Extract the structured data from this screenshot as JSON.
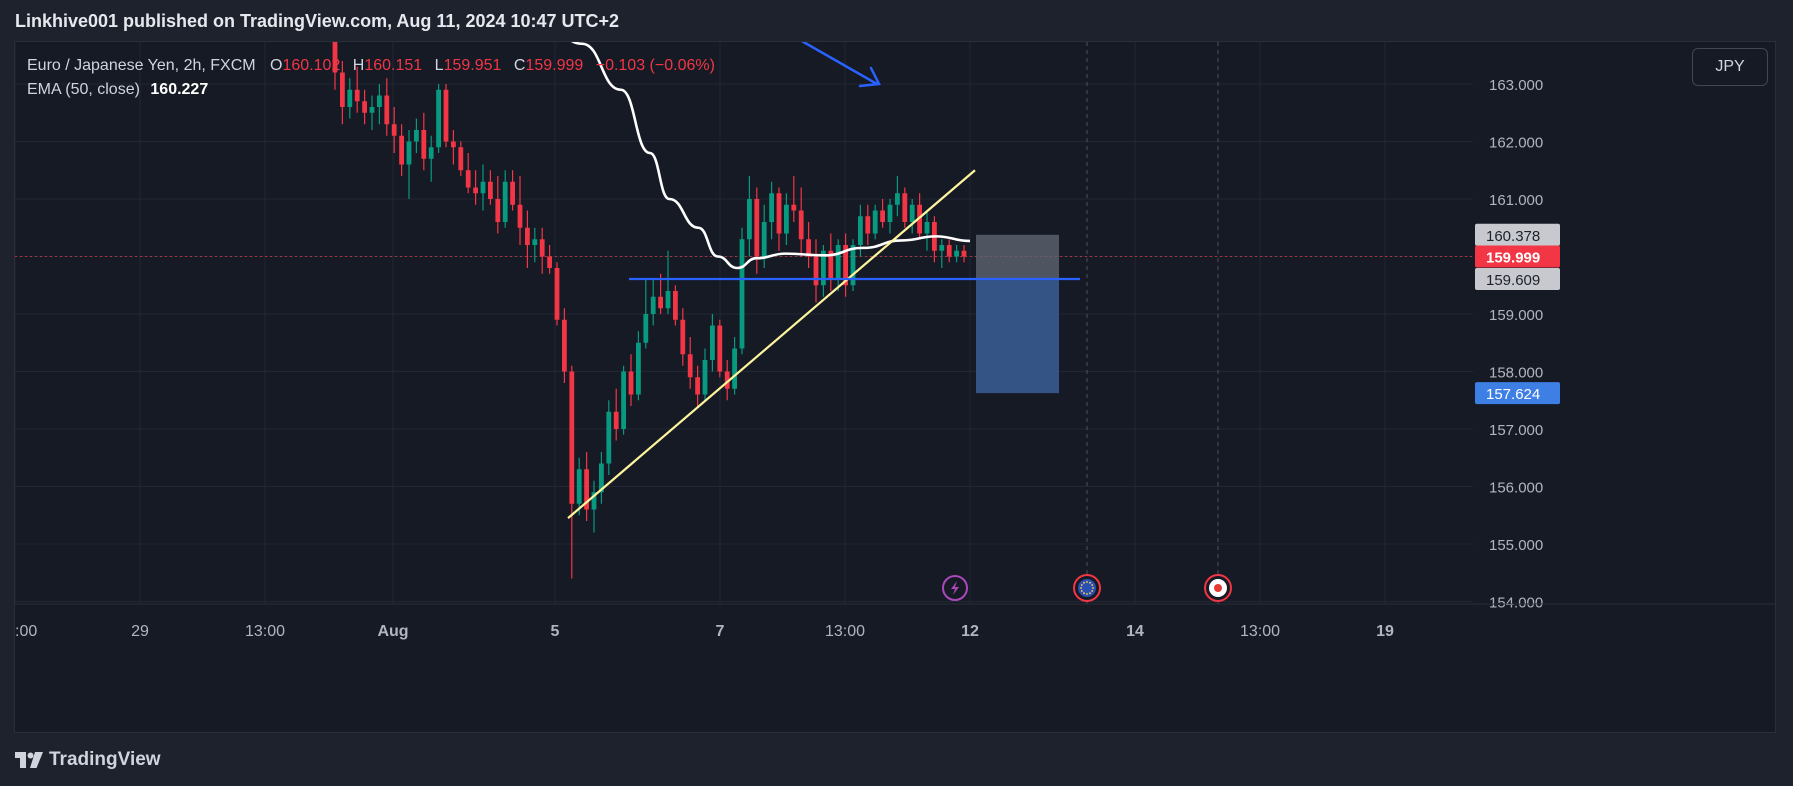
{
  "header": {
    "publish_line": "Linkhive001 published on TradingView.com, Aug 11, 2024 10:47 UTC+2"
  },
  "legend": {
    "symbol": "Euro / Japanese Yen, 2h, FXCM",
    "open_label": "O",
    "open_value": "160.102",
    "high_label": "H",
    "high_value": "160.151",
    "low_label": "L",
    "low_value": "159.951",
    "close_label": "C",
    "close_value": "159.999",
    "change": "−0.103 (−0.06%)",
    "ema_label": "EMA (50, close)",
    "ema_value": "160.227"
  },
  "currency_button": "JPY",
  "footer": {
    "brand": "TradingView"
  },
  "colors": {
    "background": "#161a25",
    "up_candle": "#089981",
    "down_candle": "#f23645",
    "ema_line": "#ffffff",
    "trendline": "#fff59d",
    "support_line": "#2962ff",
    "arrow": "#2962ff",
    "target_zone": "#3a5f96",
    "stop_zone": "#5d6470"
  },
  "chart_data": {
    "type": "candlestick",
    "symbol": "EURJPY",
    "interval": "2h",
    "y_axis": {
      "ticks": [
        "163.000",
        "162.000",
        "161.000",
        "159.000",
        "158.000",
        "157.000",
        "156.000",
        "155.000",
        "154.000"
      ],
      "ylim": [
        153.9,
        164.4
      ]
    },
    "x_axis": {
      "tick_labels": [
        ":00",
        "29",
        "13:00",
        "Aug",
        "5",
        "7",
        "13:00",
        "12",
        "14",
        "13:00",
        "19"
      ],
      "bold_ticks": [
        "Aug",
        "5",
        "7",
        "12",
        "14",
        "19"
      ]
    },
    "price_labels": [
      {
        "name": "stop",
        "value": "160.378"
      },
      {
        "name": "last",
        "value": "159.999"
      },
      {
        "name": "entry",
        "value": "159.609"
      },
      {
        "name": "target",
        "value": "157.624"
      }
    ],
    "last_price": 159.999,
    "support_level": 159.609,
    "candles": [
      {
        "o": 163.8,
        "h": 164.2,
        "l": 162.9,
        "c": 163.2
      },
      {
        "o": 163.2,
        "h": 163.4,
        "l": 162.3,
        "c": 162.6
      },
      {
        "o": 162.6,
        "h": 163.1,
        "l": 162.4,
        "c": 162.9
      },
      {
        "o": 162.9,
        "h": 163.3,
        "l": 162.5,
        "c": 162.7
      },
      {
        "o": 162.7,
        "h": 162.9,
        "l": 162.3,
        "c": 162.5
      },
      {
        "o": 162.5,
        "h": 162.8,
        "l": 162.2,
        "c": 162.6
      },
      {
        "o": 162.6,
        "h": 163.0,
        "l": 162.3,
        "c": 162.8
      },
      {
        "o": 162.8,
        "h": 163.1,
        "l": 162.1,
        "c": 162.3
      },
      {
        "o": 162.3,
        "h": 162.6,
        "l": 161.8,
        "c": 162.1
      },
      {
        "o": 162.1,
        "h": 162.3,
        "l": 161.4,
        "c": 161.6
      },
      {
        "o": 161.6,
        "h": 162.2,
        "l": 161.0,
        "c": 162.0
      },
      {
        "o": 162.0,
        "h": 162.4,
        "l": 161.8,
        "c": 162.2
      },
      {
        "o": 162.2,
        "h": 162.5,
        "l": 161.5,
        "c": 161.7
      },
      {
        "o": 161.7,
        "h": 162.1,
        "l": 161.3,
        "c": 161.9
      },
      {
        "o": 161.9,
        "h": 163.0,
        "l": 161.8,
        "c": 162.9
      },
      {
        "o": 162.9,
        "h": 163.0,
        "l": 161.9,
        "c": 162.0
      },
      {
        "o": 162.0,
        "h": 162.2,
        "l": 161.6,
        "c": 161.9
      },
      {
        "o": 161.9,
        "h": 162.0,
        "l": 161.4,
        "c": 161.5
      },
      {
        "o": 161.5,
        "h": 161.8,
        "l": 161.1,
        "c": 161.2
      },
      {
        "o": 161.2,
        "h": 161.5,
        "l": 160.9,
        "c": 161.1
      },
      {
        "o": 161.1,
        "h": 161.6,
        "l": 160.8,
        "c": 161.3
      },
      {
        "o": 161.3,
        "h": 161.5,
        "l": 160.9,
        "c": 161.0
      },
      {
        "o": 161.0,
        "h": 161.4,
        "l": 160.4,
        "c": 160.6
      },
      {
        "o": 160.6,
        "h": 161.5,
        "l": 160.5,
        "c": 161.3
      },
      {
        "o": 161.3,
        "h": 161.5,
        "l": 160.8,
        "c": 160.9
      },
      {
        "o": 160.9,
        "h": 161.4,
        "l": 160.2,
        "c": 160.5
      },
      {
        "o": 160.5,
        "h": 160.8,
        "l": 159.8,
        "c": 160.2
      },
      {
        "o": 160.2,
        "h": 160.5,
        "l": 159.9,
        "c": 160.3
      },
      {
        "o": 160.3,
        "h": 160.5,
        "l": 159.7,
        "c": 160.0
      },
      {
        "o": 160.0,
        "h": 160.2,
        "l": 159.7,
        "c": 159.8
      },
      {
        "o": 159.8,
        "h": 159.9,
        "l": 158.8,
        "c": 158.9
      },
      {
        "o": 158.9,
        "h": 159.1,
        "l": 157.8,
        "c": 158.0
      },
      {
        "o": 158.0,
        "h": 158.1,
        "l": 154.4,
        "c": 155.7
      },
      {
        "o": 155.7,
        "h": 156.5,
        "l": 155.5,
        "c": 156.3
      },
      {
        "o": 156.3,
        "h": 156.6,
        "l": 155.4,
        "c": 155.6
      },
      {
        "o": 155.6,
        "h": 156.1,
        "l": 155.2,
        "c": 155.9
      },
      {
        "o": 155.9,
        "h": 156.6,
        "l": 155.7,
        "c": 156.4
      },
      {
        "o": 156.4,
        "h": 157.5,
        "l": 156.2,
        "c": 157.3
      },
      {
        "o": 157.3,
        "h": 157.7,
        "l": 156.8,
        "c": 157.0
      },
      {
        "o": 157.0,
        "h": 158.1,
        "l": 156.9,
        "c": 158.0
      },
      {
        "o": 158.0,
        "h": 158.3,
        "l": 157.4,
        "c": 157.6
      },
      {
        "o": 157.6,
        "h": 158.7,
        "l": 157.5,
        "c": 158.5
      },
      {
        "o": 158.5,
        "h": 159.6,
        "l": 158.4,
        "c": 159.0
      },
      {
        "o": 159.0,
        "h": 159.6,
        "l": 158.8,
        "c": 159.3
      },
      {
        "o": 159.3,
        "h": 159.7,
        "l": 159.0,
        "c": 159.1
      },
      {
        "o": 159.1,
        "h": 160.1,
        "l": 159.0,
        "c": 159.4
      },
      {
        "o": 159.4,
        "h": 159.5,
        "l": 158.8,
        "c": 158.9
      },
      {
        "o": 158.9,
        "h": 159.1,
        "l": 158.1,
        "c": 158.3
      },
      {
        "o": 158.3,
        "h": 158.6,
        "l": 157.7,
        "c": 157.9
      },
      {
        "o": 157.9,
        "h": 158.1,
        "l": 157.4,
        "c": 157.6
      },
      {
        "o": 157.6,
        "h": 158.4,
        "l": 157.5,
        "c": 158.2
      },
      {
        "o": 158.2,
        "h": 159.0,
        "l": 158.0,
        "c": 158.8
      },
      {
        "o": 158.8,
        "h": 158.9,
        "l": 157.9,
        "c": 158.0
      },
      {
        "o": 158.0,
        "h": 158.2,
        "l": 157.5,
        "c": 157.7
      },
      {
        "o": 157.7,
        "h": 158.6,
        "l": 157.6,
        "c": 158.4
      },
      {
        "o": 158.4,
        "h": 160.5,
        "l": 158.3,
        "c": 160.3
      },
      {
        "o": 160.3,
        "h": 161.4,
        "l": 160.0,
        "c": 161.0
      },
      {
        "o": 161.0,
        "h": 161.2,
        "l": 159.7,
        "c": 160.0
      },
      {
        "o": 160.0,
        "h": 160.9,
        "l": 159.8,
        "c": 160.6
      },
      {
        "o": 160.6,
        "h": 161.3,
        "l": 160.3,
        "c": 161.1
      },
      {
        "o": 161.1,
        "h": 161.2,
        "l": 160.1,
        "c": 160.4
      },
      {
        "o": 160.4,
        "h": 161.1,
        "l": 160.2,
        "c": 160.9
      },
      {
        "o": 160.9,
        "h": 161.4,
        "l": 160.6,
        "c": 160.8
      },
      {
        "o": 160.8,
        "h": 161.2,
        "l": 160.0,
        "c": 160.3
      },
      {
        "o": 160.3,
        "h": 160.6,
        "l": 159.8,
        "c": 160.0
      },
      {
        "o": 160.0,
        "h": 160.3,
        "l": 159.2,
        "c": 159.5
      },
      {
        "o": 159.5,
        "h": 160.2,
        "l": 159.3,
        "c": 160.1
      },
      {
        "o": 160.1,
        "h": 160.4,
        "l": 159.4,
        "c": 159.6
      },
      {
        "o": 159.6,
        "h": 160.3,
        "l": 159.4,
        "c": 160.2
      },
      {
        "o": 160.2,
        "h": 160.4,
        "l": 159.3,
        "c": 159.5
      },
      {
        "o": 159.5,
        "h": 160.3,
        "l": 159.4,
        "c": 160.2
      },
      {
        "o": 160.2,
        "h": 160.9,
        "l": 160.0,
        "c": 160.7
      },
      {
        "o": 160.7,
        "h": 160.9,
        "l": 160.2,
        "c": 160.4
      },
      {
        "o": 160.4,
        "h": 160.9,
        "l": 160.3,
        "c": 160.8
      },
      {
        "o": 160.8,
        "h": 161.0,
        "l": 160.5,
        "c": 160.6
      },
      {
        "o": 160.6,
        "h": 161.0,
        "l": 160.4,
        "c": 160.9
      },
      {
        "o": 160.9,
        "h": 161.4,
        "l": 160.7,
        "c": 161.1
      },
      {
        "o": 161.1,
        "h": 161.2,
        "l": 160.5,
        "c": 160.6
      },
      {
        "o": 160.6,
        "h": 161.0,
        "l": 160.4,
        "c": 160.9
      },
      {
        "o": 160.9,
        "h": 161.1,
        "l": 160.3,
        "c": 160.4
      },
      {
        "o": 160.4,
        "h": 160.8,
        "l": 160.1,
        "c": 160.6
      },
      {
        "o": 160.6,
        "h": 160.7,
        "l": 159.9,
        "c": 160.1
      },
      {
        "o": 160.1,
        "h": 160.3,
        "l": 159.8,
        "c": 160.2
      },
      {
        "o": 160.2,
        "h": 160.3,
        "l": 159.9,
        "c": 160.0
      },
      {
        "o": 160.0,
        "h": 160.2,
        "l": 159.9,
        "c": 160.1
      },
      {
        "o": 160.1,
        "h": 160.2,
        "l": 159.9,
        "c": 160.0
      }
    ],
    "ema_50": [
      {
        "x": 0.0,
        "y": 164.9
      },
      {
        "x": 0.12,
        "y": 164.1
      },
      {
        "x": 0.2,
        "y": 163.7
      },
      {
        "x": 0.28,
        "y": 162.9
      },
      {
        "x": 0.34,
        "y": 161.8
      },
      {
        "x": 0.38,
        "y": 161.0
      },
      {
        "x": 0.44,
        "y": 160.5
      },
      {
        "x": 0.48,
        "y": 160.0
      },
      {
        "x": 0.52,
        "y": 159.8
      },
      {
        "x": 0.56,
        "y": 159.97
      },
      {
        "x": 0.62,
        "y": 160.05
      },
      {
        "x": 0.7,
        "y": 160.02
      },
      {
        "x": 0.78,
        "y": 160.15
      },
      {
        "x": 0.86,
        "y": 160.28
      },
      {
        "x": 0.93,
        "y": 160.35
      },
      {
        "x": 1.0,
        "y": 160.27
      }
    ],
    "annotations": {
      "trendline": {
        "from_price": 155.45,
        "to_price": 161.5
      },
      "support": {
        "price": 159.609
      },
      "position": {
        "stop": 160.378,
        "entry": 159.609,
        "target": 157.624
      },
      "arrow": "down-right"
    },
    "events": [
      "lightning",
      "eu-flag",
      "japan-flag"
    ]
  }
}
